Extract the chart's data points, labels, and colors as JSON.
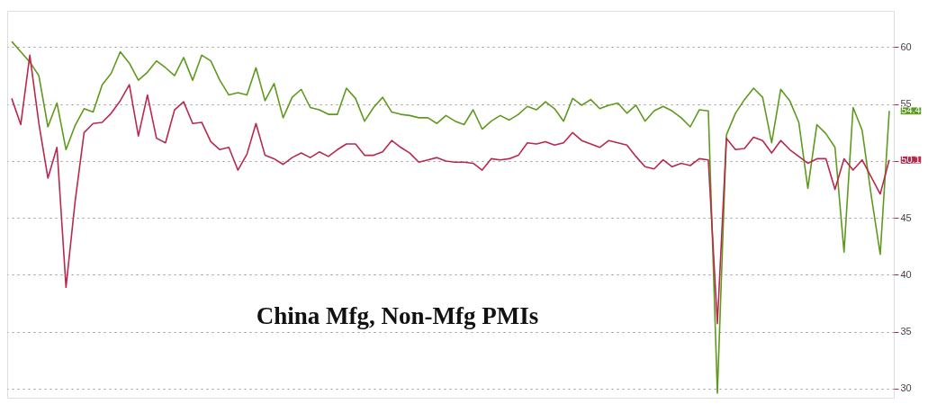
{
  "chart_data": {
    "type": "line",
    "annotations": [
      "China Mfg, Non-Mfg PMIs",
      "54.4",
      "50.1"
    ],
    "categories": [
      null,
      null,
      null,
      null,
      null,
      null,
      null,
      null,
      null,
      null,
      null,
      null,
      null,
      null,
      null,
      null,
      null,
      null,
      null,
      null,
      null,
      null,
      null,
      null,
      null,
      null,
      null,
      null,
      null,
      null,
      null,
      null,
      null,
      null,
      null,
      null,
      null,
      null,
      null,
      null,
      null,
      null,
      null,
      null,
      null,
      null,
      null,
      null,
      null,
      null,
      null,
      null,
      null,
      null,
      null,
      null,
      null,
      null,
      null,
      null,
      null,
      null,
      null,
      null,
      null,
      null,
      null,
      null,
      null,
      null,
      null,
      null,
      null,
      null,
      null,
      null,
      null,
      null,
      null,
      null,
      null,
      null,
      null,
      null,
      null,
      null,
      null,
      null,
      null,
      null,
      null,
      null,
      null,
      null,
      null,
      null,
      null,
      null
    ],
    "ylim": [
      29.2,
      63.2
    ],
    "yticks": [
      30,
      35,
      40,
      45,
      50,
      55,
      60
    ],
    "grid": "y",
    "tick_labels": "y",
    "series": [
      {
        "color": "#5e9a1e",
        "values": [
          60.5,
          59.6,
          58.7,
          57.5,
          53,
          55.1,
          51,
          53.1,
          54.6,
          54.3,
          56.7,
          57.7,
          59.6,
          58.6,
          57.1,
          57.8,
          58.8,
          58.2,
          57.5,
          59.1,
          57.1,
          59.3,
          58.8,
          57.1,
          55.8,
          56,
          55.8,
          58.2,
          55.3,
          56.8,
          53.8,
          55.6,
          56.3,
          54.7,
          54.5,
          54.1,
          54.1,
          56.4,
          55.5,
          53.5,
          54.7,
          55.6,
          54.3,
          54.1,
          54,
          53.8,
          53.8,
          53.3,
          54,
          53.5,
          53.2,
          54.5,
          52.8,
          53.5,
          54,
          53.6,
          54.1,
          54.8,
          54.5,
          55.2,
          54.6,
          53.5,
          55.5,
          54.9,
          55.4,
          54.6,
          54.9,
          55.1,
          54.2,
          54.9,
          53.5,
          54.4,
          54.8,
          54.4,
          53.8,
          53,
          54.5,
          54.4,
          29.6,
          52.3,
          54.2,
          55.4,
          56.4,
          55.6,
          51.6,
          56.3,
          55.3,
          53.4,
          47.6,
          53.2,
          52.4,
          51.2,
          42,
          54.7,
          52.7,
          47,
          41.8,
          54.4
        ]
      },
      {
        "color": "#b8294d",
        "values": [
          55.5,
          53.2,
          59.3,
          53.3,
          48.5,
          51.2,
          38.9,
          46.4,
          52.5,
          53.3,
          53.4,
          54.2,
          55.3,
          56.7,
          52.2,
          55.8,
          52,
          51.6,
          54.5,
          55.2,
          53.3,
          53.4,
          51.7,
          51,
          51.2,
          49.2,
          50.6,
          53.3,
          50.5,
          50.2,
          49.7,
          50.3,
          50.7,
          50.3,
          50.8,
          50.4,
          51,
          51.5,
          51.5,
          50.5,
          50.5,
          50.8,
          51.8,
          51.2,
          50.7,
          49.9,
          50.1,
          50.3,
          50,
          49.9,
          49.9,
          49.8,
          49.2,
          50.2,
          50.1,
          50.2,
          50.5,
          51.6,
          51.5,
          51.7,
          51.4,
          51.6,
          52.5,
          51.8,
          51.5,
          51.2,
          51.8,
          51.6,
          51.4,
          50.4,
          49.5,
          49.3,
          50.1,
          49.5,
          49.8,
          49.6,
          50.2,
          50.1,
          35.7,
          52,
          51,
          51.1,
          52.1,
          51.8,
          50.7,
          51.8,
          51,
          50.4,
          49.8,
          50.2,
          50.2,
          47.5,
          50.2,
          49.2,
          50.1,
          48.6,
          47.1,
          50.1
        ]
      }
    ]
  }
}
